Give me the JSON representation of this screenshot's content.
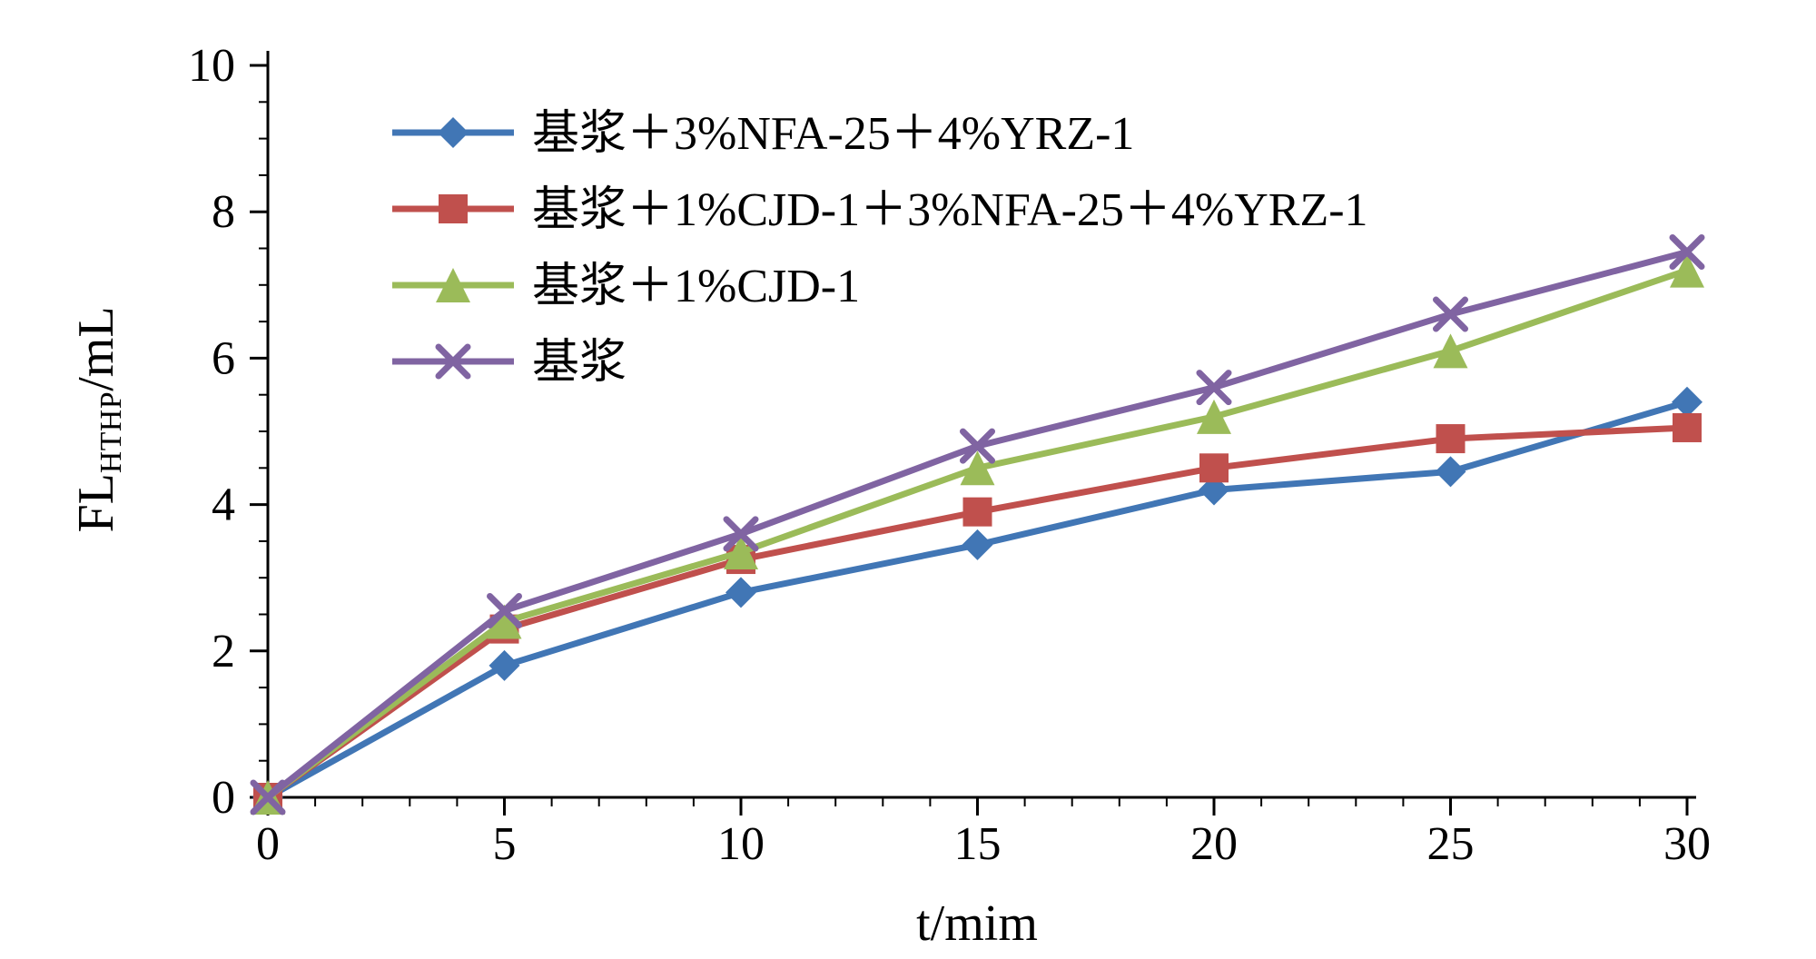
{
  "chart_data": {
    "type": "line",
    "title": "",
    "xlabel": "t/mim",
    "ylabel_parts": {
      "prefix": "FL",
      "sub": "HTHP",
      "suffix": "/mL"
    },
    "x": [
      0,
      5,
      10,
      15,
      20,
      25,
      30
    ],
    "xlim": [
      0,
      30
    ],
    "ylim": [
      0,
      10
    ],
    "x_major_step": 5,
    "x_minor_step": 1,
    "y_major_step": 2,
    "y_minor_step": 0.5,
    "x_tick_labels": [
      "0",
      "5",
      "10",
      "15",
      "20",
      "25",
      "30"
    ],
    "y_tick_labels": [
      "0",
      "2",
      "4",
      "6",
      "8",
      "10"
    ],
    "grid": false,
    "legend_position": "top-left-inside",
    "axis_color": "#000000",
    "background": "#ffffff",
    "series": [
      {
        "name": "基浆＋3%NFA-25＋4%YRZ-1",
        "marker": "diamond",
        "color": "#4176B5",
        "values": [
          0,
          1.8,
          2.8,
          3.45,
          4.2,
          4.45,
          5.4
        ]
      },
      {
        "name": "基浆＋1%CJD-1＋3%NFA-25＋4%YRZ-1",
        "marker": "square",
        "color": "#C0504D",
        "values": [
          0,
          2.3,
          3.25,
          3.9,
          4.5,
          4.9,
          5.05
        ]
      },
      {
        "name": "基浆＋1%CJD-1",
        "marker": "triangle",
        "color": "#9BBB59",
        "values": [
          0,
          2.4,
          3.35,
          4.5,
          5.2,
          6.1,
          7.2
        ]
      },
      {
        "name": "基浆",
        "marker": "x",
        "color": "#8064A2",
        "values": [
          0,
          2.55,
          3.6,
          4.8,
          5.6,
          6.6,
          7.45
        ]
      }
    ]
  }
}
